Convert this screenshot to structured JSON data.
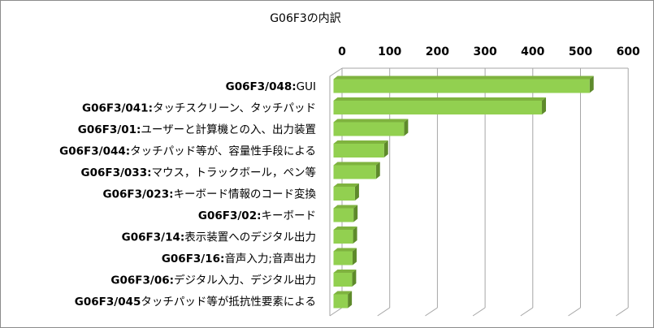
{
  "chart_data": {
    "type": "bar",
    "orientation": "horizontal",
    "style": "3d-clustered",
    "title": "G06F3の内訳",
    "xlabel": "",
    "ylabel": "",
    "xlim": [
      0,
      600
    ],
    "ticks": [
      "0",
      "100",
      "200",
      "300",
      "400",
      "500",
      "600"
    ],
    "grid": true,
    "legend": "none",
    "bar_color": "#92d050",
    "categories": [
      {
        "code": "G06F3/048:",
        "desc": "GUI"
      },
      {
        "code": "G06F3/041:",
        "desc": "タッチスクリーン、タッチパッド"
      },
      {
        "code": "G06F3/01:",
        "desc": "ユーザーと計算機との入、出力装置"
      },
      {
        "code": "G06F3/044:",
        "desc": "タッチパッド等が、容量性手段による"
      },
      {
        "code": "G06F3/033:",
        "desc": "マウス，トラックボール，ペン等"
      },
      {
        "code": "G06F3/023:",
        "desc": "キーボード情報のコード変換"
      },
      {
        "code": "G06F3/02:",
        "desc": "キーボード"
      },
      {
        "code": "G06F3/14:",
        "desc": "表示装置へのデジタル出力"
      },
      {
        "code": "G06F3/16:",
        "desc": "音声入力;音声出力"
      },
      {
        "code": "G06F3/06:",
        "desc": "デジタル入力、デジタル出力"
      },
      {
        "code": "G06F3/045",
        "desc": "タッチパッド等が抵抗性要素による"
      }
    ],
    "values": [
      537,
      437,
      148,
      106,
      89,
      45,
      42,
      41,
      40,
      39,
      30
    ]
  }
}
